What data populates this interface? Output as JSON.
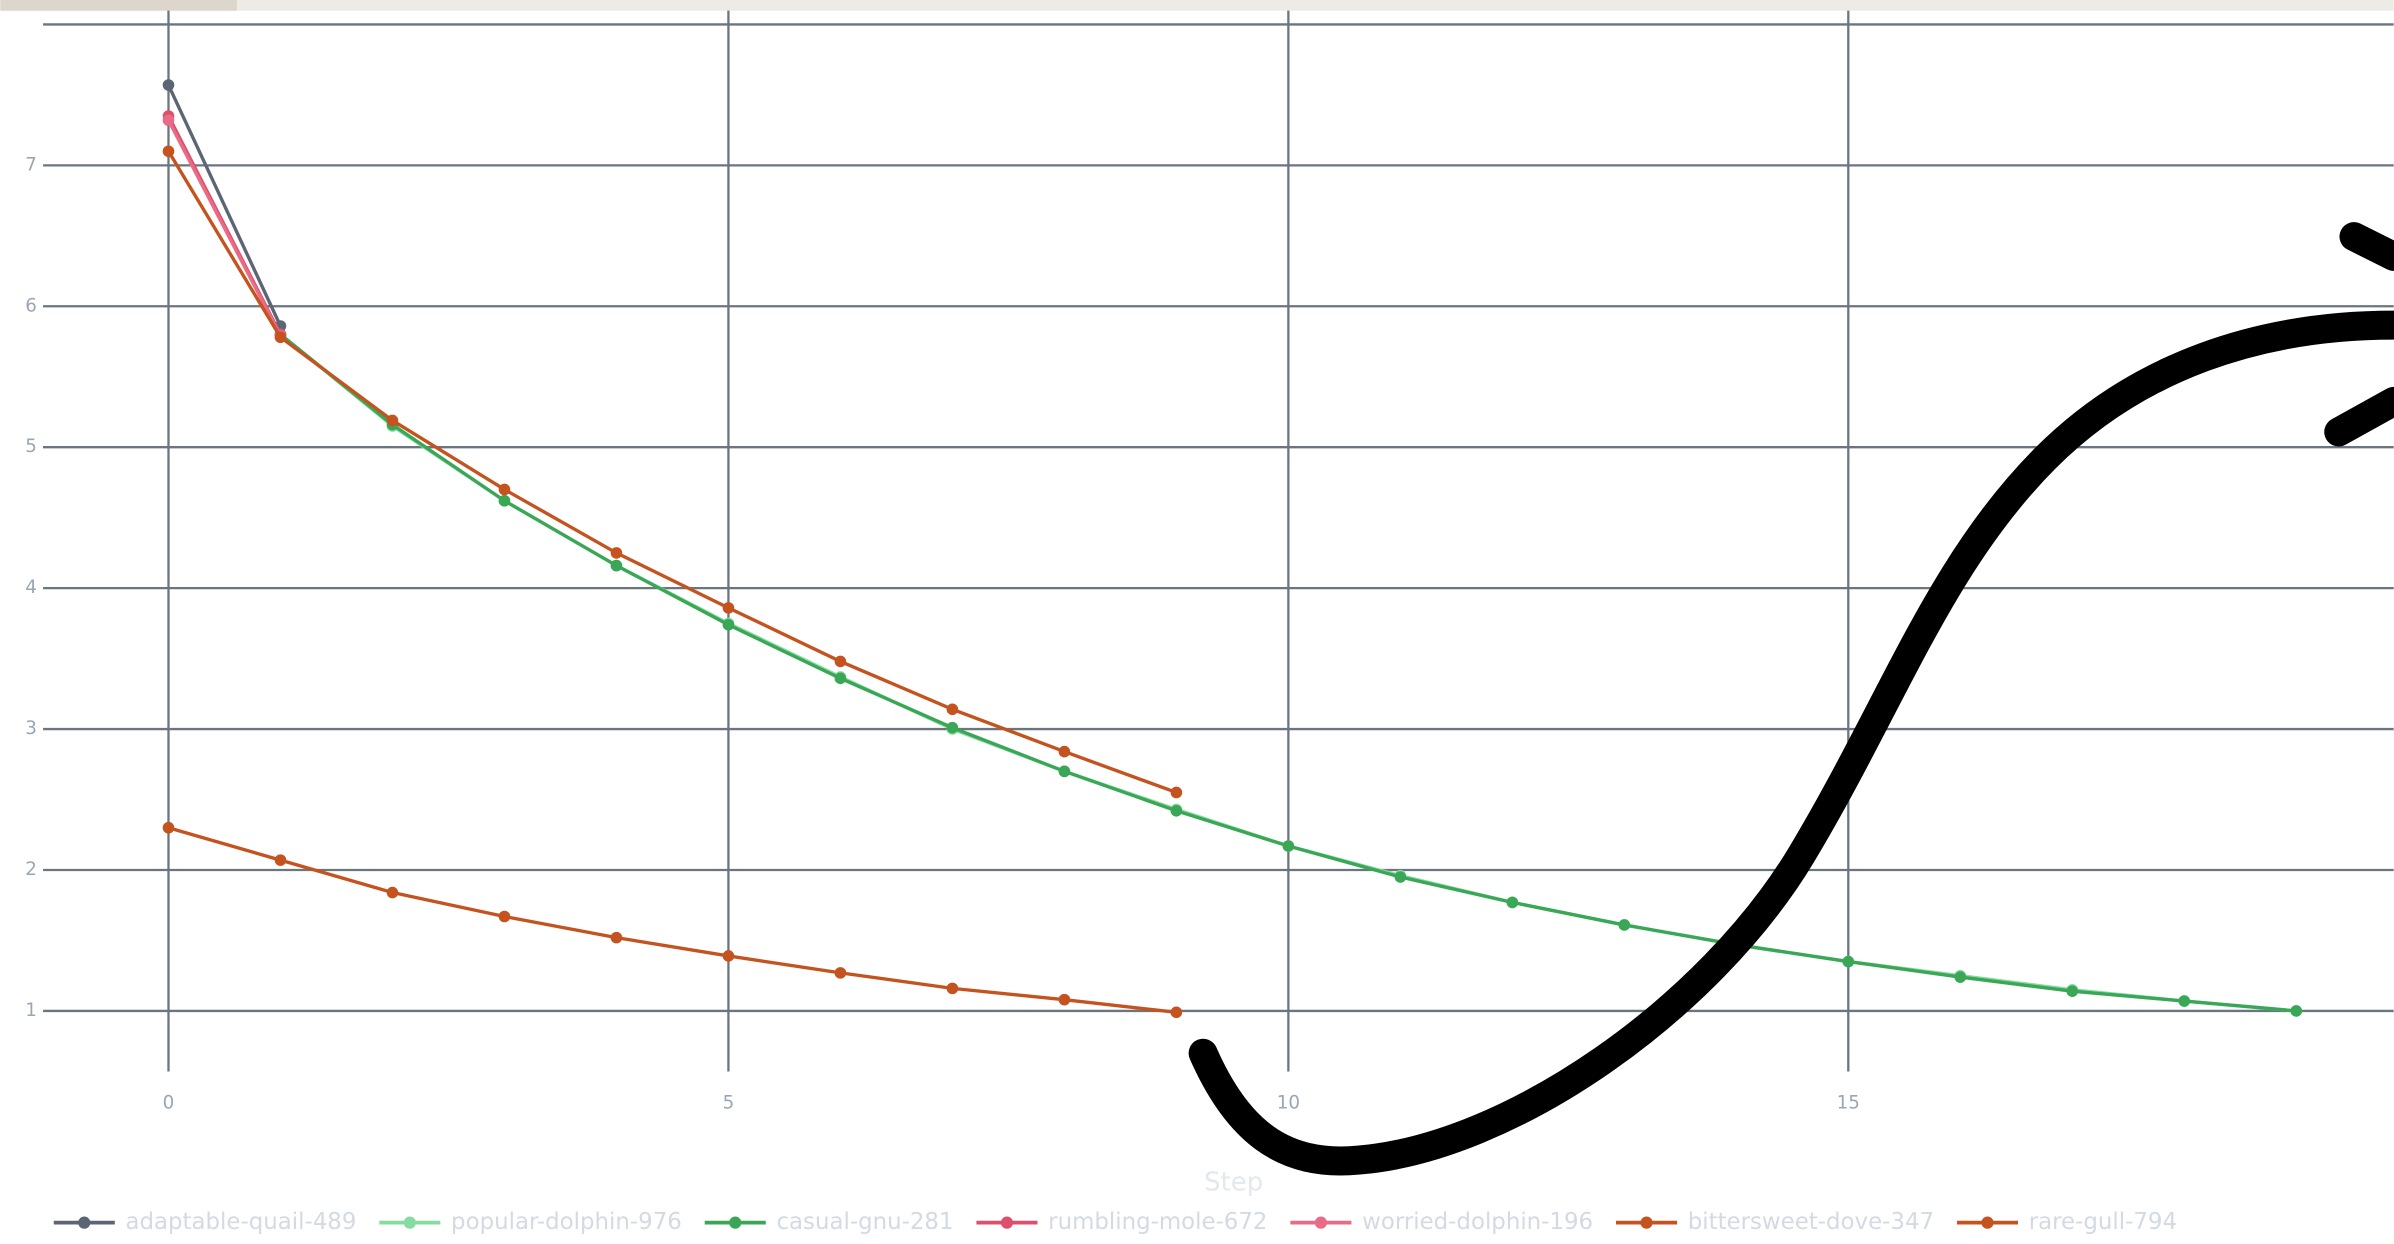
{
  "chart_data": {
    "type": "line",
    "x_label": "Step",
    "xlim": [
      -1.12,
      19.87
    ],
    "ylim": [
      0.57,
      8.0
    ],
    "xticks": [
      0,
      5,
      10,
      15
    ],
    "yticks": [
      1,
      2,
      3,
      4,
      5,
      6,
      7
    ],
    "grid": true,
    "legend": "bottom",
    "series": [
      {
        "name": "adaptable-quail-489",
        "color": "#5b6573",
        "x": [
          0,
          1
        ],
        "values": [
          7.57,
          5.86
        ]
      },
      {
        "name": "popular-dolphin-976",
        "color": "#86dca0",
        "x": [
          1,
          2,
          3,
          4,
          5,
          6,
          7,
          8,
          9,
          10,
          11,
          12,
          13,
          14,
          15,
          16,
          17,
          18,
          19
        ],
        "values": [
          5.8,
          5.15,
          4.62,
          4.16,
          3.75,
          3.37,
          3.0,
          2.7,
          2.43,
          2.17,
          1.96,
          1.77,
          1.61,
          1.47,
          1.35,
          1.25,
          1.15,
          1.07,
          1.0
        ]
      },
      {
        "name": "casual-gnu-281",
        "color": "#3aa757",
        "x": [
          1,
          2,
          3,
          4,
          5,
          6,
          7,
          8,
          9,
          10,
          11,
          12,
          13,
          14,
          15,
          16,
          17,
          18,
          19
        ],
        "values": [
          5.8,
          5.16,
          4.62,
          4.16,
          3.74,
          3.36,
          3.01,
          2.7,
          2.42,
          2.17,
          1.95,
          1.77,
          1.61,
          1.47,
          1.35,
          1.24,
          1.14,
          1.07,
          1.0
        ]
      },
      {
        "name": "rumbling-mole-672",
        "color": "#dd4f6a",
        "x": [
          0,
          1
        ],
        "values": [
          7.35,
          5.8
        ]
      },
      {
        "name": "worried-dolphin-196",
        "color": "#e96b86",
        "x": [
          0,
          1
        ],
        "values": [
          7.32,
          5.79
        ]
      },
      {
        "name": "bittersweet-dove-347",
        "color": "#c4531f",
        "x": [
          0,
          1,
          2,
          3,
          4,
          5,
          6,
          7,
          8,
          9
        ],
        "values": [
          7.1,
          5.78,
          5.19,
          4.7,
          4.25,
          3.86,
          3.48,
          3.14,
          2.84,
          2.55
        ]
      },
      {
        "name": "rare-gull-794",
        "color": "#c4531f",
        "x": [
          0,
          1,
          2,
          3,
          4,
          5,
          6,
          7,
          8,
          9
        ],
        "values": [
          2.3,
          2.07,
          1.84,
          1.67,
          1.52,
          1.39,
          1.27,
          1.16,
          1.08,
          0.99
        ]
      }
    ]
  }
}
